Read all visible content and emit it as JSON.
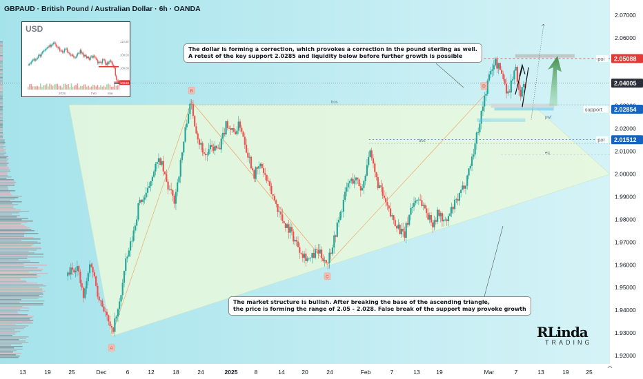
{
  "title": "GBPAUD · British Pound / Australian Dollar · 6h · OANDA",
  "callouts": {
    "top": [
      "The dollar is forming a correction, which provokes a correction in the pound sterling as well.",
      "A retest of the key support 2.0285 and liquidity below before further growth is possible"
    ],
    "bottom": [
      "The market structure is bullish. After breaking the base of the ascending triangle,",
      "the price is forming the range of 2.05 - 2.028. False break of the support may provoke growth"
    ]
  },
  "logo": {
    "top": "RLinda",
    "bottom": "TRADING"
  },
  "colors": {
    "bull": "#26a69a",
    "bear": "#ef5350",
    "cyan": "#b2ebf2",
    "red_label": "#e53935",
    "blue_label": "#1565c0",
    "dark_label": "#2a2e39",
    "triangle": "#e6f7d9"
  },
  "chart_data": {
    "type": "candlestick",
    "symbol": "GBPAUD",
    "timeframe": "6h",
    "ylim": [
      1.915,
      2.075
    ],
    "y_ticks": [
      "2.07000",
      "2.06000",
      "2.05000",
      "2.04000",
      "2.03000",
      "2.02000",
      "2.01000",
      "2.00000",
      "1.99000",
      "1.98000",
      "1.97000",
      "1.96000",
      "1.95000",
      "1.94000",
      "1.93000",
      "1.92000"
    ],
    "x_ticks": [
      "13",
      "19",
      "25",
      "Dec",
      "6",
      "12",
      "18",
      "24",
      "2025",
      "8",
      "14",
      "20",
      "24",
      "Feb",
      "7",
      "13",
      "19",
      "Mar",
      "7",
      "13",
      "19",
      "25"
    ],
    "price_labels": [
      {
        "value": 2.05088,
        "text": "2.05088",
        "kind": "red",
        "tag": "poi"
      },
      {
        "value": 2.04005,
        "text": "2.04005",
        "kind": "dark",
        "tag": ""
      },
      {
        "value": 2.02854,
        "text": "2.02854",
        "kind": "blue",
        "tag": "support"
      },
      {
        "value": 2.01512,
        "text": "2.01512",
        "kind": "blue",
        "tag": "poi"
      }
    ],
    "points": [
      {
        "label": "A",
        "value": 1.9285
      },
      {
        "label": "B",
        "value": 2.032
      },
      {
        "label": "C",
        "value": 1.96
      },
      {
        "label": "D",
        "value": 2.0345
      }
    ],
    "annotations": [
      "bos",
      "bos",
      "eq",
      "pwl"
    ],
    "path": [
      [
        0,
        1.955
      ],
      [
        6,
        1.96
      ],
      [
        10,
        1.945
      ],
      [
        14,
        1.962
      ],
      [
        18,
        1.948
      ],
      [
        22,
        1.94
      ],
      [
        26,
        1.93
      ],
      [
        30,
        1.94
      ],
      [
        34,
        1.96
      ],
      [
        38,
        1.972
      ],
      [
        42,
        1.988
      ],
      [
        46,
        1.99
      ],
      [
        50,
        2.002
      ],
      [
        54,
        2.006
      ],
      [
        58,
        1.995
      ],
      [
        62,
        1.988
      ],
      [
        66,
        2.006
      ],
      [
        70,
        2.028
      ],
      [
        72,
        2.03
      ],
      [
        76,
        2.015
      ],
      [
        80,
        2.008
      ],
      [
        84,
        2.012
      ],
      [
        88,
        2.01
      ],
      [
        92,
        2.023
      ],
      [
        96,
        2.018
      ],
      [
        100,
        2.022
      ],
      [
        104,
        2.01
      ],
      [
        108,
        2.0
      ],
      [
        112,
        2.004
      ],
      [
        116,
        1.995
      ],
      [
        120,
        1.988
      ],
      [
        124,
        1.98
      ],
      [
        128,
        1.976
      ],
      [
        132,
        1.97
      ],
      [
        136,
        1.965
      ],
      [
        140,
        1.962
      ],
      [
        144,
        1.966
      ],
      [
        148,
        1.963
      ],
      [
        150,
        1.961
      ],
      [
        154,
        1.972
      ],
      [
        158,
        1.984
      ],
      [
        162,
        1.996
      ],
      [
        166,
        1.998
      ],
      [
        170,
        1.993
      ],
      [
        174,
        2.01
      ],
      [
        178,
        1.998
      ],
      [
        182,
        1.99
      ],
      [
        186,
        1.982
      ],
      [
        190,
        1.978
      ],
      [
        194,
        1.972
      ],
      [
        198,
        1.985
      ],
      [
        202,
        1.99
      ],
      [
        206,
        1.985
      ],
      [
        210,
        1.978
      ],
      [
        214,
        1.983
      ],
      [
        218,
        1.978
      ],
      [
        222,
        1.985
      ],
      [
        226,
        1.99
      ],
      [
        230,
        1.998
      ],
      [
        234,
        2.01
      ],
      [
        238,
        2.025
      ],
      [
        242,
        2.04
      ],
      [
        246,
        2.05
      ],
      [
        250,
        2.045
      ],
      [
        254,
        2.035
      ],
      [
        258,
        2.048
      ],
      [
        260,
        2.035
      ],
      [
        264,
        2.04
      ]
    ],
    "projection": "range 2.05 - 2.028, retest of support then growth"
  },
  "inset": {
    "title": "USD",
    "y_ticks": [
      "110.00",
      "108.00",
      "106.00",
      "103.83"
    ],
    "x_ticks": [
      "2025",
      "Feb",
      "Mar"
    ],
    "path": [
      [
        0,
        106.5
      ],
      [
        6,
        107.0
      ],
      [
        12,
        107.6
      ],
      [
        18,
        108.0
      ],
      [
        24,
        108.8
      ],
      [
        30,
        109.4
      ],
      [
        34,
        109.9
      ],
      [
        38,
        109.3
      ],
      [
        44,
        108.4
      ],
      [
        50,
        108.7
      ],
      [
        56,
        108.0
      ],
      [
        62,
        107.6
      ],
      [
        68,
        108.6
      ],
      [
        74,
        107.8
      ],
      [
        80,
        107.4
      ],
      [
        86,
        107.8
      ],
      [
        90,
        107.0
      ],
      [
        94,
        106.6
      ],
      [
        98,
        107.2
      ],
      [
        102,
        106.5
      ],
      [
        106,
        106.9
      ],
      [
        110,
        106.7
      ],
      [
        112,
        106.2
      ],
      [
        114,
        104.8
      ],
      [
        116,
        104.2
      ],
      [
        118,
        103.83
      ]
    ]
  }
}
